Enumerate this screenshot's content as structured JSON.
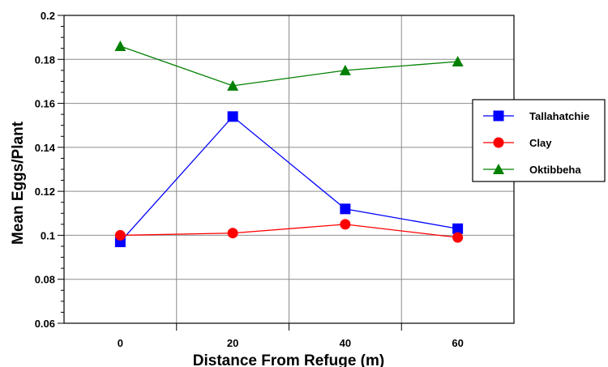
{
  "chart_data": {
    "type": "line",
    "title": "",
    "xlabel": "Distance From Refuge (m)",
    "ylabel": "Mean Eggs/Plant",
    "x": [
      0,
      20,
      40,
      60
    ],
    "x_tick_labels": [
      "0",
      "20",
      "40",
      "60"
    ],
    "xlim": [
      -10,
      70
    ],
    "ylim": [
      0.06,
      0.2
    ],
    "y_ticks": [
      0.06,
      0.08,
      0.1,
      0.12,
      0.14,
      0.16,
      0.18,
      0.2
    ],
    "y_tick_labels": [
      "0.06",
      "0.08",
      "0.1",
      "0.12",
      "0.14",
      "0.16",
      "0.18",
      "0.2"
    ],
    "grid": true,
    "legend_position": "right",
    "series": [
      {
        "name": "Tallahatchie",
        "values": [
          0.097,
          0.154,
          0.112,
          0.103
        ],
        "color": "#0000ff",
        "marker": "square"
      },
      {
        "name": "Clay",
        "values": [
          0.1,
          0.101,
          0.105,
          0.099
        ],
        "color": "#ff0000",
        "marker": "circle"
      },
      {
        "name": "Oktibbeha",
        "values": [
          0.186,
          0.168,
          0.175,
          0.179
        ],
        "color": "#008000",
        "marker": "triangle"
      }
    ]
  }
}
